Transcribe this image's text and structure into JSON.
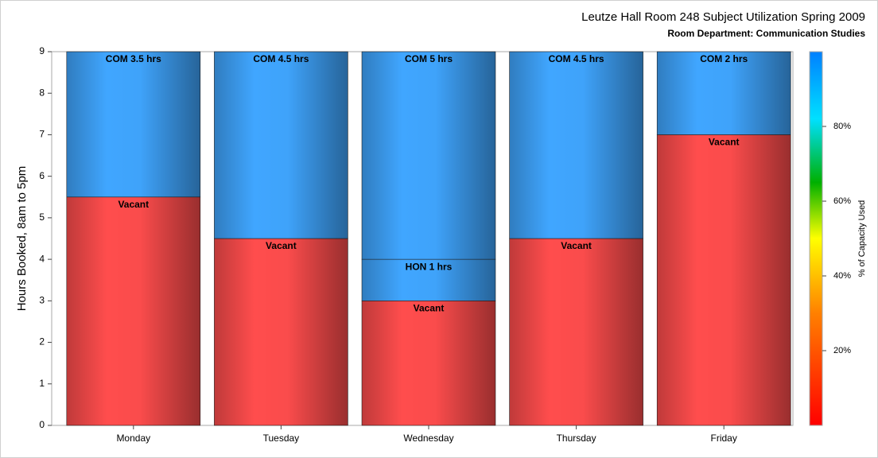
{
  "chart_data": {
    "type": "stacked_bar",
    "title": "Leutze Hall Room 248 Subject Utilization Spring 2009",
    "subtitle": "Room Department:  Communication Studies",
    "y_label": "Hours Booked, 8am to 5pm",
    "categories": [
      "Monday",
      "Tuesday",
      "Wednesday",
      "Thursday",
      "Friday"
    ],
    "series": [
      {
        "color": "#ff4d4d",
        "values": [
          5.5,
          4.5,
          3,
          4.5,
          7
        ],
        "value_labels": [
          "Vacant",
          "Vacant",
          "Vacant",
          "Vacant",
          "Vacant"
        ]
      },
      {
        "color": "#40a6ff",
        "values": [
          null,
          null,
          1,
          null,
          null
        ],
        "value_labels": [
          null,
          null,
          "HON 1 hrs",
          null,
          null
        ]
      },
      {
        "color": "#40a6ff",
        "values": [
          3.5,
          4.5,
          5,
          4.5,
          2
        ],
        "value_labels": [
          "COM 3.5 hrs",
          "COM 4.5 hrs",
          "COM 5 hrs",
          "COM 4.5 hrs",
          "COM 2 hrs"
        ]
      }
    ],
    "ylim": [
      0,
      9
    ],
    "yticks": [
      0,
      1,
      2,
      3,
      4,
      5,
      6,
      7,
      8,
      9
    ],
    "colorbar": {
      "label": "% of Capacity Used",
      "lim": [
        0,
        100
      ],
      "ticks": [
        {
          "value": 20,
          "label": "20%"
        },
        {
          "value": 40,
          "label": "40%"
        },
        {
          "value": 60,
          "label": "60%"
        },
        {
          "value": 80,
          "label": "80%"
        }
      ]
    }
  }
}
